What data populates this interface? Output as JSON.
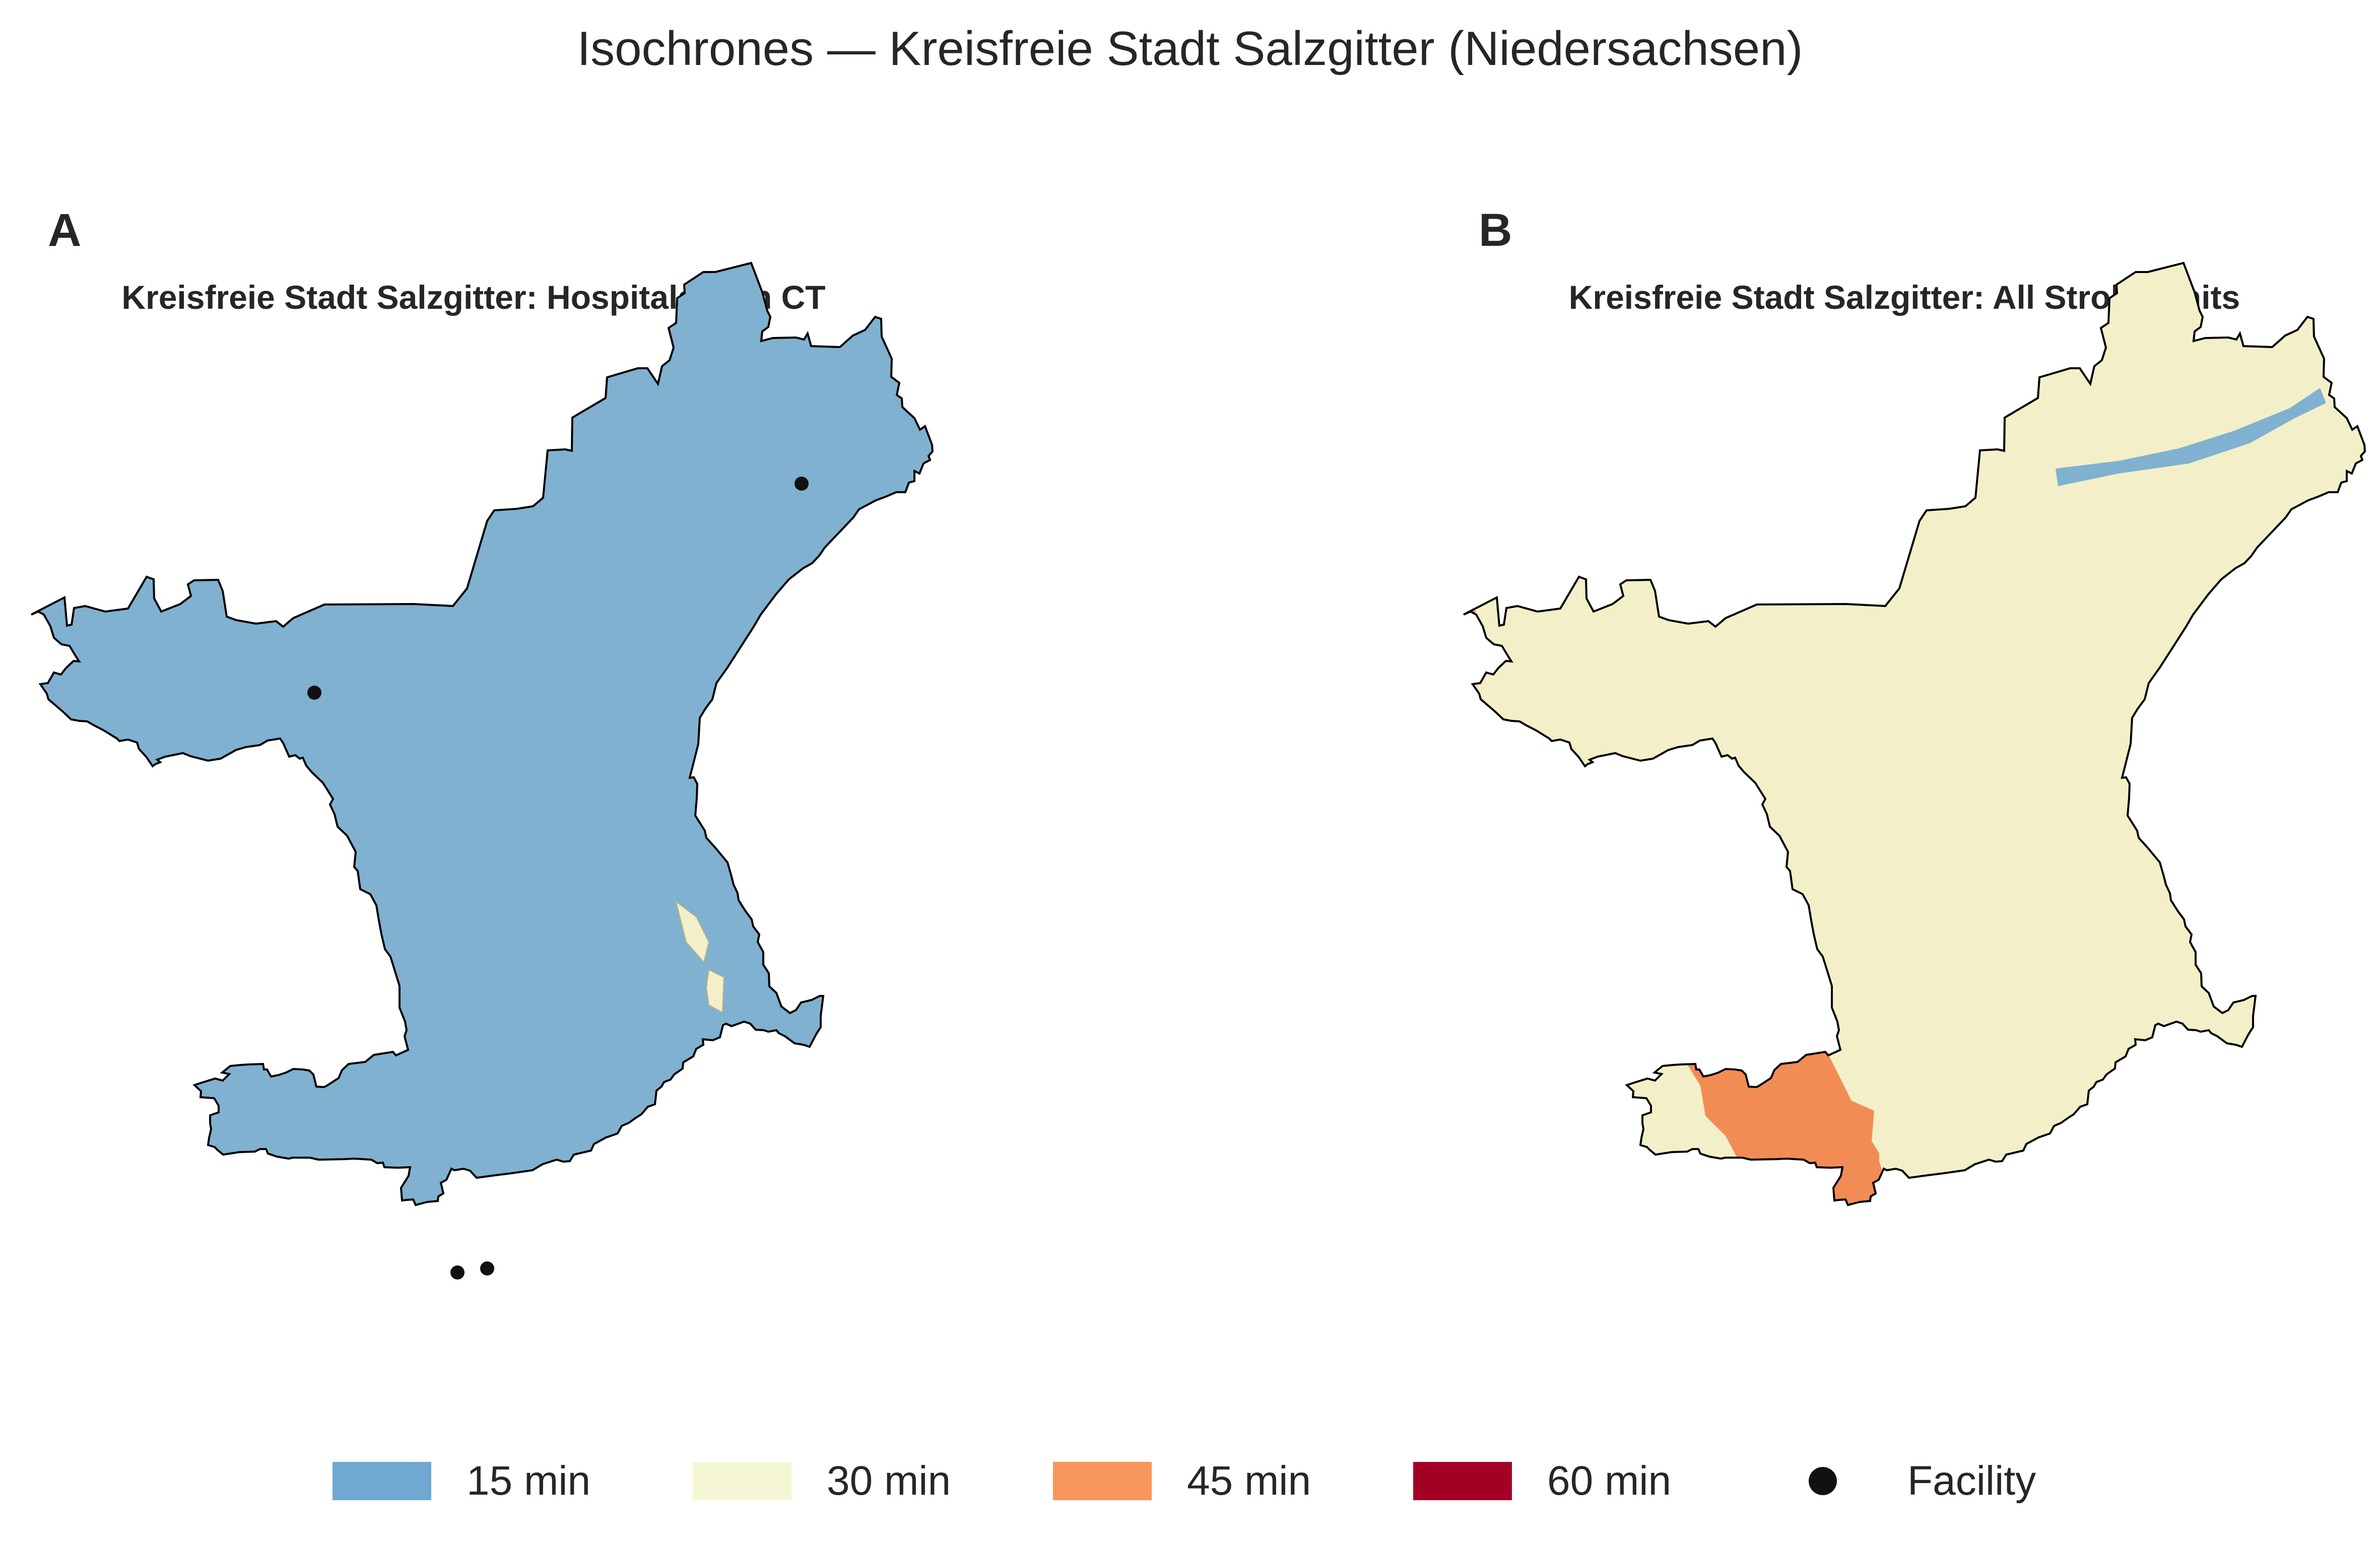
{
  "title": "Isochrones — Kreisfreie Stadt Salzgitter (Niedersachsen)",
  "panels": [
    {
      "letter": "A",
      "subtitle": "Kreisfreie Stadt Salzgitter: Hospitals with CT"
    },
    {
      "letter": "B",
      "subtitle": "Kreisfreie Stadt Salzgitter: All Stroke Units"
    }
  ],
  "legend": [
    {
      "label": "15 min",
      "color": "#6fa8d0"
    },
    {
      "label": "30 min",
      "color": "#f5f7d4"
    },
    {
      "label": "45 min",
      "color": "#f6965a"
    },
    {
      "label": "60 min",
      "color": "#a30026"
    },
    {
      "label": "Facility",
      "color": "#111111"
    }
  ],
  "colors": {
    "zone_15": "#80b1d0",
    "zone_30": "#f3efc8",
    "zone_45": "#f28c55",
    "outline": "#000000"
  }
}
